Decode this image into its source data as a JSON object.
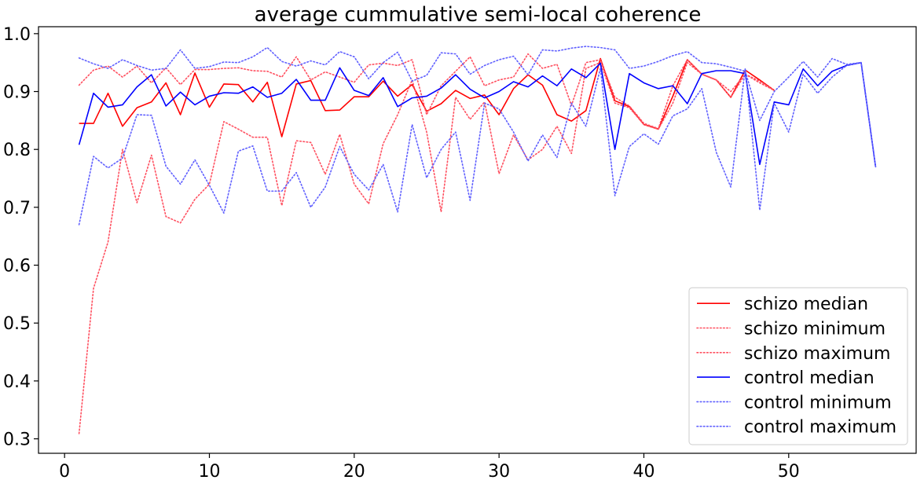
{
  "chart_data": {
    "type": "line",
    "title": "average cummulative semi-local coherence",
    "xlabel": "",
    "ylabel": "",
    "xlim": [
      -1.8,
      58.8
    ],
    "ylim": [
      0.275,
      1.012
    ],
    "xticks": [
      0,
      10,
      20,
      30,
      40,
      50
    ],
    "yticks": [
      0.3,
      0.4,
      0.5,
      0.6,
      0.7,
      0.8,
      0.9,
      1.0
    ],
    "ytick_labels": [
      "0.3",
      "0.4",
      "0.5",
      "0.6",
      "0.7",
      "0.8",
      "0.9",
      "1.0"
    ],
    "grid": false,
    "legend_position": "lower-right",
    "series": [
      {
        "name": "schizo median",
        "color": "#ff0000",
        "style": "solid",
        "x": [
          1,
          2,
          3,
          4,
          5,
          6,
          7,
          8,
          9,
          10,
          11,
          12,
          13,
          14,
          15,
          16,
          17,
          18,
          19,
          20,
          21,
          22,
          23,
          24,
          25,
          26,
          27,
          28,
          29,
          30,
          31,
          32,
          33,
          34,
          35,
          36,
          37,
          38,
          39,
          40,
          41,
          42,
          43,
          44,
          45,
          46,
          47,
          48,
          49
        ],
        "y": [
          0.845,
          0.845,
          0.897,
          0.84,
          0.872,
          0.882,
          0.915,
          0.86,
          0.932,
          0.873,
          0.913,
          0.912,
          0.882,
          0.916,
          0.822,
          0.913,
          0.919,
          0.867,
          0.868,
          0.891,
          0.891,
          0.918,
          0.892,
          0.912,
          0.866,
          0.879,
          0.902,
          0.888,
          0.894,
          0.86,
          0.905,
          0.929,
          0.911,
          0.86,
          0.849,
          0.867,
          0.957,
          0.884,
          0.874,
          0.843,
          0.835,
          0.892,
          0.955,
          0.93,
          0.92,
          0.89,
          0.937,
          0.92,
          0.902
        ]
      },
      {
        "name": "schizo minimum",
        "color": "#ff5060",
        "style": "dotted",
        "x": [
          1,
          2,
          3,
          4,
          5,
          6,
          7,
          8,
          9,
          10,
          11,
          12,
          13,
          14,
          15,
          16,
          17,
          18,
          19,
          20,
          21,
          22,
          23,
          24,
          25,
          26,
          27,
          28,
          29,
          30,
          31,
          32,
          33,
          34,
          35,
          36,
          37,
          38,
          39,
          40,
          41,
          42,
          43,
          44,
          45,
          46,
          47,
          48,
          49
        ],
        "y": [
          0.309,
          0.56,
          0.64,
          0.8,
          0.708,
          0.79,
          0.684,
          0.673,
          0.714,
          0.74,
          0.848,
          0.835,
          0.821,
          0.821,
          0.703,
          0.815,
          0.812,
          0.757,
          0.826,
          0.74,
          0.706,
          0.81,
          0.86,
          0.92,
          0.83,
          0.692,
          0.89,
          0.852,
          0.882,
          0.758,
          0.825,
          0.782,
          0.8,
          0.84,
          0.793,
          0.94,
          0.95,
          0.88,
          0.872,
          0.843,
          0.835,
          0.88,
          0.95,
          0.93,
          0.92,
          0.9,
          0.93,
          0.918,
          0.902
        ]
      },
      {
        "name": "schizo maximum",
        "color": "#ff5060",
        "style": "dotted",
        "x": [
          1,
          2,
          3,
          4,
          5,
          6,
          7,
          8,
          9,
          10,
          11,
          12,
          13,
          14,
          15,
          16,
          17,
          18,
          19,
          20,
          21,
          22,
          23,
          24,
          25,
          26,
          27,
          28,
          29,
          30,
          31,
          32,
          33,
          34,
          35,
          36,
          37,
          38,
          39,
          40,
          41,
          42,
          43,
          44,
          45,
          46,
          47,
          48,
          49
        ],
        "y": [
          0.911,
          0.937,
          0.944,
          0.925,
          0.944,
          0.915,
          0.941,
          0.912,
          0.938,
          0.938,
          0.94,
          0.941,
          0.936,
          0.935,
          0.925,
          0.96,
          0.92,
          0.934,
          0.925,
          0.916,
          0.946,
          0.949,
          0.945,
          0.955,
          0.86,
          0.91,
          0.935,
          0.96,
          0.91,
          0.92,
          0.925,
          0.965,
          0.94,
          0.947,
          0.876,
          0.95,
          0.955,
          0.89,
          0.875,
          0.845,
          0.836,
          0.91,
          0.955,
          0.93,
          0.92,
          0.89,
          0.93,
          0.915,
          0.902
        ]
      },
      {
        "name": "control median",
        "color": "#0000ff",
        "style": "solid",
        "x": [
          1,
          2,
          3,
          4,
          5,
          6,
          7,
          8,
          9,
          10,
          11,
          12,
          13,
          14,
          15,
          16,
          17,
          18,
          19,
          20,
          21,
          22,
          23,
          24,
          25,
          26,
          27,
          28,
          29,
          30,
          31,
          32,
          33,
          34,
          35,
          36,
          37,
          38,
          39,
          40,
          41,
          42,
          43,
          44,
          45,
          46,
          47,
          48,
          49,
          50,
          51,
          52,
          53,
          54,
          55,
          56
        ],
        "y": [
          0.808,
          0.897,
          0.873,
          0.877,
          0.908,
          0.929,
          0.875,
          0.899,
          0.877,
          0.892,
          0.898,
          0.897,
          0.908,
          0.89,
          0.897,
          0.921,
          0.885,
          0.885,
          0.941,
          0.902,
          0.893,
          0.924,
          0.874,
          0.889,
          0.892,
          0.906,
          0.929,
          0.904,
          0.889,
          0.9,
          0.917,
          0.908,
          0.927,
          0.91,
          0.939,
          0.924,
          0.949,
          0.8,
          0.931,
          0.915,
          0.905,
          0.91,
          0.879,
          0.931,
          0.936,
          0.936,
          0.931,
          0.774,
          0.882,
          0.877,
          0.939,
          0.91,
          0.935,
          0.945,
          0.95,
          0.77
        ]
      },
      {
        "name": "control minimum",
        "color": "#6060ff",
        "style": "dotted",
        "x": [
          1,
          2,
          3,
          4,
          5,
          6,
          7,
          8,
          9,
          10,
          11,
          12,
          13,
          14,
          15,
          16,
          17,
          18,
          19,
          20,
          21,
          22,
          23,
          24,
          25,
          26,
          27,
          28,
          29,
          30,
          31,
          32,
          33,
          34,
          35,
          36,
          37,
          38,
          39,
          40,
          41,
          42,
          43,
          44,
          45,
          46,
          47,
          48,
          49,
          50,
          51,
          52,
          53,
          54,
          55,
          56
        ],
        "y": [
          0.67,
          0.788,
          0.768,
          0.785,
          0.86,
          0.859,
          0.771,
          0.74,
          0.782,
          0.738,
          0.69,
          0.797,
          0.806,
          0.728,
          0.728,
          0.76,
          0.7,
          0.735,
          0.805,
          0.757,
          0.73,
          0.774,
          0.692,
          0.843,
          0.751,
          0.8,
          0.83,
          0.712,
          0.88,
          0.87,
          0.83,
          0.78,
          0.825,
          0.786,
          0.88,
          0.84,
          0.94,
          0.72,
          0.805,
          0.827,
          0.809,
          0.858,
          0.87,
          0.905,
          0.795,
          0.735,
          0.94,
          0.695,
          0.88,
          0.83,
          0.93,
          0.897,
          0.925,
          0.945,
          0.95,
          0.77
        ]
      },
      {
        "name": "control maximum",
        "color": "#6060ff",
        "style": "dotted",
        "x": [
          1,
          2,
          3,
          4,
          5,
          6,
          7,
          8,
          9,
          10,
          11,
          12,
          13,
          14,
          15,
          16,
          17,
          18,
          19,
          20,
          21,
          22,
          23,
          24,
          25,
          26,
          27,
          28,
          29,
          30,
          31,
          32,
          33,
          34,
          35,
          36,
          37,
          38,
          39,
          40,
          41,
          42,
          43,
          44,
          45,
          46,
          47,
          48,
          49,
          50,
          51,
          52,
          53,
          54,
          55,
          56
        ],
        "y": [
          0.958,
          0.948,
          0.94,
          0.955,
          0.945,
          0.937,
          0.94,
          0.972,
          0.94,
          0.943,
          0.951,
          0.95,
          0.96,
          0.976,
          0.952,
          0.944,
          0.953,
          0.946,
          0.969,
          0.96,
          0.922,
          0.95,
          0.968,
          0.918,
          0.928,
          0.967,
          0.965,
          0.93,
          0.945,
          0.955,
          0.961,
          0.929,
          0.972,
          0.97,
          0.975,
          0.978,
          0.976,
          0.972,
          0.94,
          0.944,
          0.952,
          0.962,
          0.969,
          0.95,
          0.948,
          0.942,
          0.935,
          0.85,
          0.9,
          0.925,
          0.952,
          0.925,
          0.957,
          0.947,
          0.95,
          0.77
        ]
      }
    ]
  }
}
